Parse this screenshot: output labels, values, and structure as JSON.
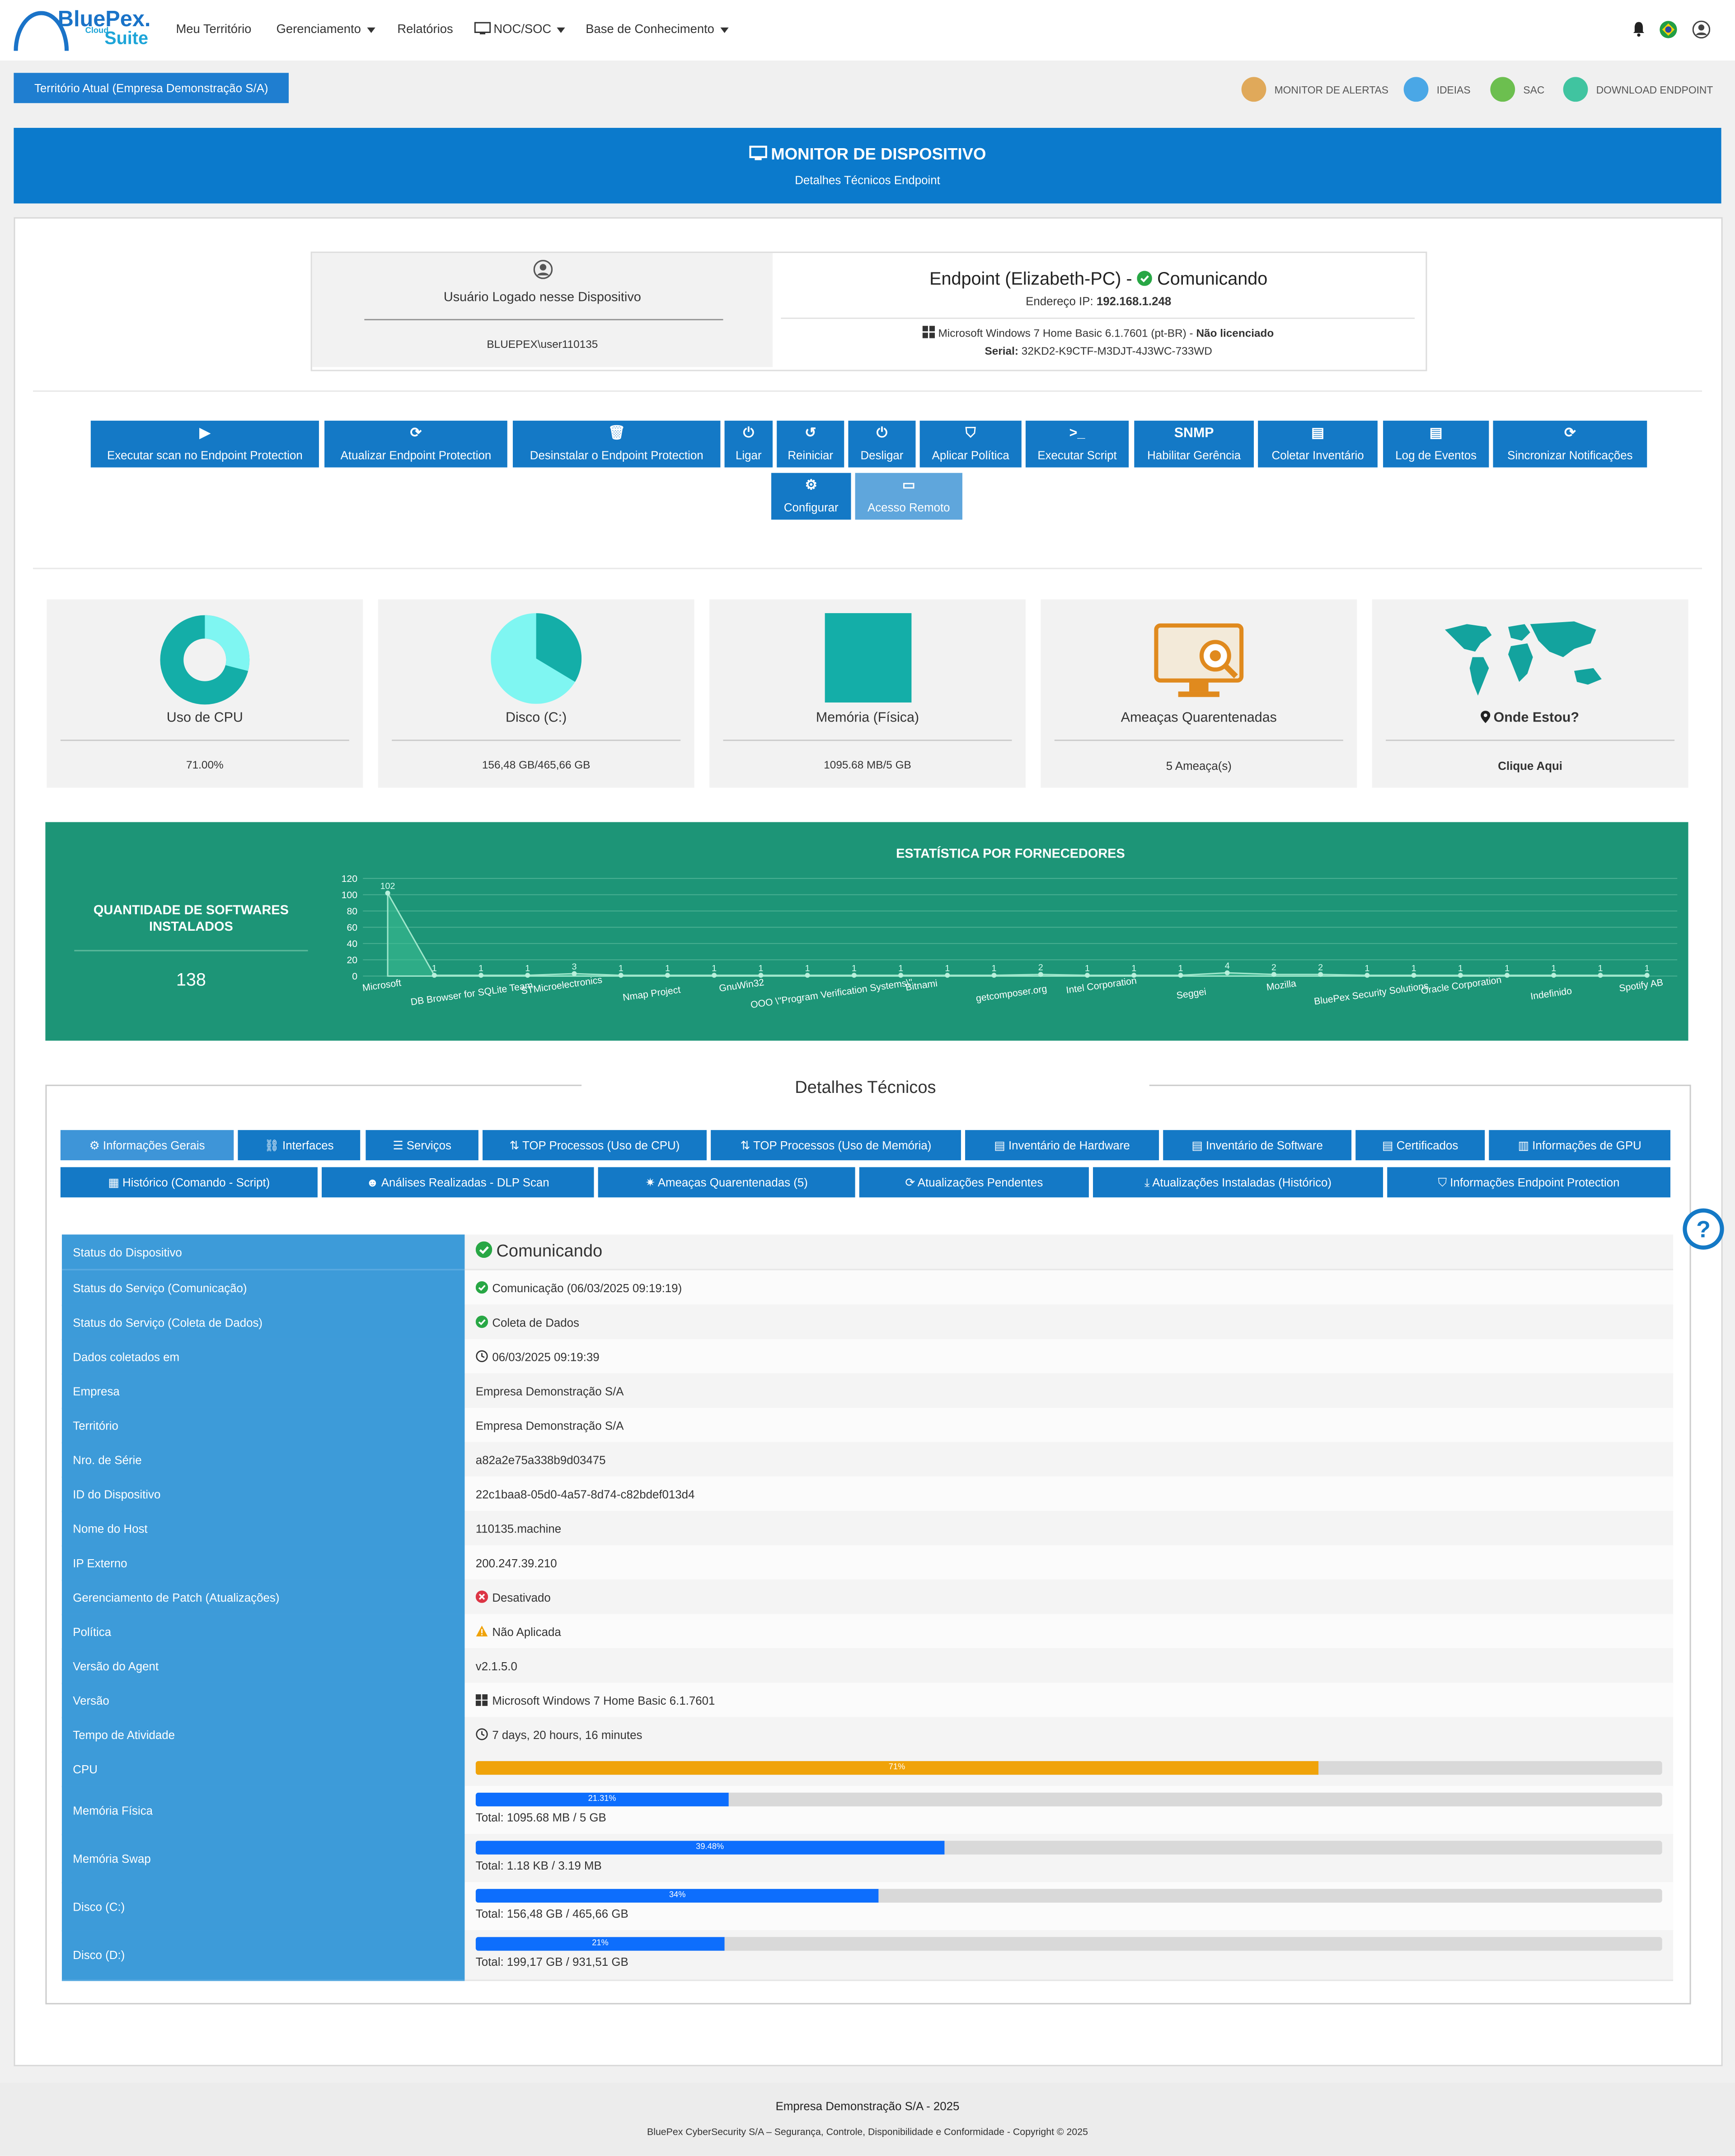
{
  "nav": {
    "logo_main": "BluePex.",
    "logo_cloud": "Cloud",
    "logo_suite": "Suite",
    "items": [
      "Meu Território",
      "Gerenciamento",
      "Relatórios",
      "NOC/SOC",
      "Base de Conhecimento"
    ]
  },
  "territory": {
    "button": "Território Atual (Empresa Demonstração S/A)",
    "quick": [
      "MONITOR DE ALERTAS",
      "IDEIAS",
      "SAC",
      "DOWNLOAD ENDPOINT"
    ]
  },
  "banner": {
    "title": "MONITOR DE DISPOSITIVO",
    "subtitle": "Detalhes Técnicos Endpoint"
  },
  "user": {
    "label": "Usuário Logado nesse Dispositivo",
    "name": "BLUEPEX\\user110135"
  },
  "endpoint": {
    "title": "Endpoint (Elizabeth-PC) -",
    "status": "Comunicando",
    "ip_label": "Endereço IP:",
    "ip": "192.168.1.248",
    "os": "Microsoft Windows 7 Home Basic 6.1.7601 (pt-BR) -",
    "license": "Não licenciado",
    "serial_label": "Serial:",
    "serial": "32KD2-K9CTF-M3DJT-4J3WC-733WD"
  },
  "actions": [
    {
      "icon": "▶",
      "label": "Executar scan no Endpoint Protection"
    },
    {
      "icon": "⟳",
      "label": "Atualizar Endpoint Protection"
    },
    {
      "icon": "🗑",
      "label": "Desinstalar o Endpoint Protection"
    },
    {
      "icon": "⏻",
      "label": "Ligar"
    },
    {
      "icon": "↺",
      "label": "Reiniciar"
    },
    {
      "icon": "⏻",
      "label": "Desligar"
    },
    {
      "icon": "⛉",
      "label": "Aplicar Política"
    },
    {
      "icon": ">_",
      "label": "Executar Script"
    },
    {
      "icon": "SNMP",
      "label": "Habilitar Gerência"
    },
    {
      "icon": "▤",
      "label": "Coletar Inventário"
    },
    {
      "icon": "▤",
      "label": "Log de Eventos"
    },
    {
      "icon": "⟳",
      "label": "Sincronizar Notificações"
    },
    {
      "icon": "⚙",
      "label": "Configurar"
    },
    {
      "icon": "▭",
      "label": "Acesso Remoto"
    }
  ],
  "cards": [
    {
      "title": "Uso de CPU",
      "value": "71.00%"
    },
    {
      "title": "Disco (C:)",
      "value": "156,48 GB/465,66 GB"
    },
    {
      "title": "Memória (Física)",
      "value": "1095.68 MB/5 GB"
    },
    {
      "title": "Ameaças Quarentenadas",
      "value": "5 Ameaça(s)"
    },
    {
      "title": "Onde Estou?",
      "value": "Clique Aqui"
    }
  ],
  "gauges": {
    "cpu_percent": 71,
    "disk_used_fraction": 0.336
  },
  "software": {
    "label": "QUANTIDADE DE SOFTWARES INSTALADOS",
    "count": "138"
  },
  "chart_data": {
    "type": "area",
    "title": "ESTATÍSTICA POR FORNECEDORES",
    "ylim": [
      0,
      120
    ],
    "yticks": [
      0,
      20,
      40,
      60,
      80,
      100,
      120
    ],
    "grid": true,
    "x_labels": [
      "Microsoft",
      "DB Browser for SQLite Team",
      "STMicroelectronics",
      "Nmap Project",
      "GnuWin32",
      "OOO \\\"Program Verification Systems\\\"",
      "Bitnami",
      "getcomposer.org",
      "Intel Corporation",
      "Seggei",
      "Mozilla",
      "BluePex Security Solutions",
      "Oracle Corporation",
      "Indefinido",
      "Spotify AB"
    ],
    "values": [
      102,
      1,
      1,
      1,
      3,
      1,
      1,
      1,
      1,
      1,
      1,
      1,
      1,
      1,
      2,
      1,
      1,
      1,
      4,
      2,
      2,
      1,
      1,
      1,
      1,
      1,
      1,
      1
    ],
    "color": "#3cbf95"
  },
  "details": {
    "title": "Detalhes Técnicos",
    "tabs_row1": [
      "Informações Gerais",
      "Interfaces",
      "Serviços",
      "TOP Processos (Uso de CPU)",
      "TOP Processos (Uso de Memória)",
      "Inventário de Hardware",
      "Inventário de Software",
      "Certificados",
      "Informações de GPU"
    ],
    "tabs_row2": [
      "Histórico (Comando - Script)",
      "Análises Realizadas - DLP Scan",
      "Ameaças Quarentenadas (5)",
      "Atualizações Pendentes",
      "Atualizações Instaladas (Histórico)",
      "Informações Endpoint Protection"
    ],
    "rows": [
      {
        "label": "Status do Dispositivo",
        "value": "Comunicando"
      },
      {
        "label": "Status do Serviço (Comunicação)",
        "value": "Comunicação (06/03/2025 09:19:19)"
      },
      {
        "label": "Status do Serviço (Coleta de Dados)",
        "value": "Coleta de Dados"
      },
      {
        "label": "Dados coletados em",
        "value": "06/03/2025 09:19:39"
      },
      {
        "label": "Empresa",
        "value": "Empresa Demonstração S/A"
      },
      {
        "label": "Território",
        "value": "Empresa Demonstração S/A"
      },
      {
        "label": "Nro. de Série",
        "value": "a82a2e75a338b9d03475"
      },
      {
        "label": "ID do Dispositivo",
        "value": "22c1baa8-05d0-4a57-8d74-c82bdef013d4"
      },
      {
        "label": "Nome do Host",
        "value": "110135.machine"
      },
      {
        "label": "IP Externo",
        "value": "200.247.39.210"
      },
      {
        "label": "Gerenciamento de Patch (Atualizações)",
        "value": "Desativado"
      },
      {
        "label": "Política",
        "value": "Não Aplicada"
      },
      {
        "label": "Versão do Agent",
        "value": "v2.1.5.0"
      },
      {
        "label": "Versão",
        "value": "Microsoft Windows 7 Home Basic 6.1.7601"
      },
      {
        "label": "Tempo de Atividade",
        "value": "7 days, 20 hours, 16 minutes"
      }
    ],
    "bars": [
      {
        "label": "CPU",
        "percent": 71,
        "text": "71%",
        "total": "",
        "color": "#f0a30a"
      },
      {
        "label": "Memória Física",
        "percent": 21.31,
        "text": "21.31%",
        "total": "Total: 1095.68 MB / 5 GB",
        "color": "#0d6efd"
      },
      {
        "label": "Memória Swap",
        "percent": 39.48,
        "text": "39.48%",
        "total": "Total: 1.18 KB / 3.19 MB",
        "color": "#0d6efd"
      },
      {
        "label": "Disco (C:)",
        "percent": 34,
        "text": "34%",
        "total": "Total: 156,48 GB / 465,66 GB",
        "color": "#0d6efd"
      },
      {
        "label": "Disco (D:)",
        "percent": 21,
        "text": "21%",
        "total": "Total: 199,17 GB / 931,51 GB",
        "color": "#0d6efd"
      }
    ]
  },
  "footer": {
    "line1": "Empresa Demonstração S/A - 2025",
    "line2": "BluePex CyberSecurity S/A – Segurança, Controle, Disponibilidade e Conformidade - Copyright © 2025"
  },
  "colors": {
    "primary": "#1479c6",
    "banner": "#0b7acc",
    "green": "#1d9577",
    "teal": "#14aea8",
    "success": "#28a745"
  }
}
